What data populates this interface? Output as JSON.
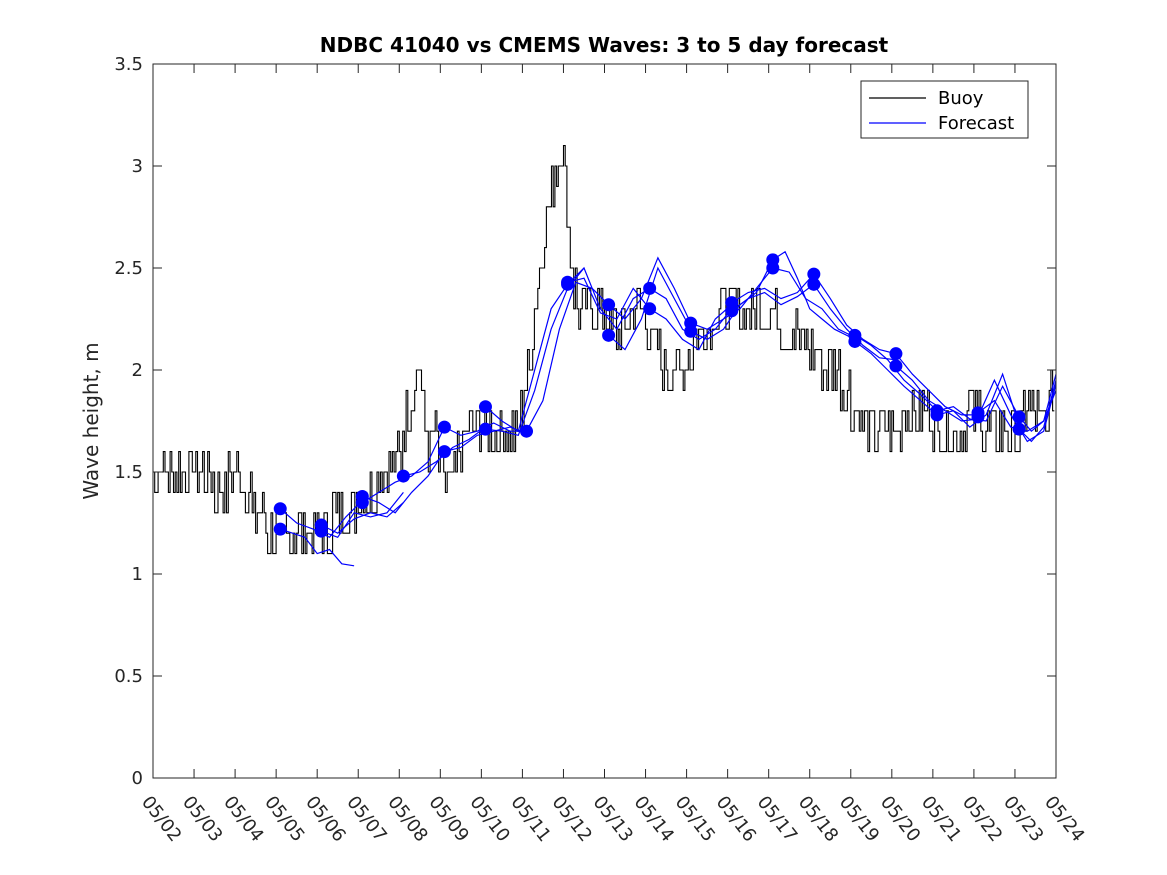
{
  "chart_data": {
    "type": "line",
    "title": "NDBC 41040 vs CMEMS Waves: 3 to 5 day forecast",
    "xlabel": "",
    "ylabel": "Wave height, m",
    "xlim": [
      "05/02",
      "05/24"
    ],
    "ylim": [
      0,
      3.5
    ],
    "x_ticks": [
      "05/02",
      "05/03",
      "05/04",
      "05/05",
      "05/06",
      "05/07",
      "05/08",
      "05/09",
      "05/10",
      "05/11",
      "05/12",
      "05/13",
      "05/14",
      "05/15",
      "05/16",
      "05/17",
      "05/18",
      "05/19",
      "05/20",
      "05/21",
      "05/22",
      "05/23",
      "05/24"
    ],
    "y_ticks": [
      "0",
      "0.5",
      "1",
      "1.5",
      "2",
      "2.5",
      "3",
      "3.5"
    ],
    "grid": false,
    "legend": {
      "position": "top-right",
      "entries": [
        "Buoy",
        "Forecast"
      ]
    },
    "colors": {
      "Buoy": "#000000",
      "Forecast": "#0000ff"
    },
    "series": [
      {
        "name": "Buoy",
        "style": "line",
        "day_offset_from_05_02": [
          0,
          0.25,
          0.5,
          0.75,
          1,
          1.25,
          1.5,
          1.75,
          2,
          2.25,
          2.5,
          2.75,
          3,
          3.25,
          3.5,
          3.75,
          4,
          4.25,
          4.5,
          4.75,
          5,
          5.25,
          5.5,
          5.75,
          6,
          6.25,
          6.5,
          6.75,
          6.9,
          7,
          7.25,
          7.5,
          7.75,
          8,
          8.25,
          8.5,
          8.75,
          9,
          9.25,
          9.5,
          9.75,
          10,
          10.25,
          10.4,
          10.5,
          10.75,
          11,
          11.25,
          11.5,
          11.75,
          12,
          12.25,
          12.5,
          12.75,
          13,
          13.25,
          13.5,
          13.75,
          14,
          14.25,
          14.5,
          14.75,
          15,
          15.25,
          15.5,
          15.75,
          16,
          16.25,
          16.5,
          16.75,
          17,
          17.25,
          17.5,
          17.75,
          18,
          18.25,
          18.5,
          18.75,
          19,
          19.25,
          19.5,
          19.75,
          20,
          20.25,
          20.5,
          20.75,
          21,
          21.25,
          21.5,
          21.75,
          22
        ],
        "wave_height_m": [
          1.5,
          1.55,
          1.5,
          1.5,
          1.55,
          1.5,
          1.45,
          1.4,
          1.5,
          1.45,
          1.3,
          1.25,
          1.2,
          1.15,
          1.2,
          1.25,
          1.2,
          1.2,
          1.3,
          1.3,
          1.35,
          1.4,
          1.45,
          1.5,
          1.55,
          1.8,
          2.05,
          1.6,
          1.7,
          1.55,
          1.4,
          1.6,
          1.7,
          1.7,
          1.75,
          1.7,
          1.7,
          1.75,
          2.1,
          2.6,
          2.9,
          3.1,
          2.5,
          2.3,
          2.3,
          2.25,
          2.3,
          2.2,
          2.2,
          2.3,
          2.25,
          2.1,
          2.0,
          1.95,
          2.05,
          2.2,
          2.15,
          2.3,
          2.35,
          2.3,
          2.35,
          2.3,
          2.3,
          2.25,
          2.2,
          2.15,
          2.1,
          2.05,
          2.0,
          1.95,
          1.85,
          1.75,
          1.7,
          1.65,
          1.7,
          1.75,
          1.8,
          1.75,
          1.75,
          1.7,
          1.75,
          1.7,
          1.8,
          1.75,
          1.7,
          1.75,
          1.7,
          1.75,
          1.8,
          1.7,
          1.95
        ]
      },
      {
        "name": "Forecast",
        "style": "line-with-markers",
        "runs": [
          {
            "start": 3.1,
            "x": [
              3.1,
              3.4,
              3.7,
              4.0,
              4.3,
              4.6,
              4.9
            ],
            "y": [
              1.22,
              1.2,
              1.18,
              1.1,
              1.12,
              1.05,
              1.04
            ]
          },
          {
            "start": 3.1,
            "x": [
              3.1,
              3.5,
              3.9,
              4.3,
              4.7,
              5.1
            ],
            "y": [
              1.32,
              1.25,
              1.22,
              1.18,
              1.28,
              1.36
            ]
          },
          {
            "start": 4.1,
            "x": [
              4.1,
              4.5,
              4.9,
              5.3,
              5.7,
              6.1
            ],
            "y": [
              1.24,
              1.2,
              1.27,
              1.3,
              1.28,
              1.35
            ]
          },
          {
            "start": 4.1,
            "x": [
              4.1,
              4.5,
              4.9,
              5.3,
              5.7,
              6.1
            ],
            "y": [
              1.21,
              1.18,
              1.3,
              1.28,
              1.3,
              1.4
            ]
          },
          {
            "start": 5.1,
            "x": [
              5.1,
              5.5,
              5.9,
              6.3,
              6.7,
              7.1
            ],
            "y": [
              1.38,
              1.35,
              1.3,
              1.4,
              1.48,
              1.6
            ]
          },
          {
            "start": 5.1,
            "x": [
              5.1,
              5.5,
              5.9,
              6.3,
              6.7,
              7.1
            ],
            "y": [
              1.35,
              1.4,
              1.45,
              1.48,
              1.55,
              1.72
            ]
          },
          {
            "start": 6.1,
            "x": [
              6.1,
              6.5,
              6.9,
              7.3,
              7.7,
              8.1
            ],
            "y": [
              1.48,
              1.5,
              1.55,
              1.62,
              1.66,
              1.72
            ]
          },
          {
            "start": 7.1,
            "x": [
              7.1,
              7.5,
              7.9,
              8.3,
              8.7,
              9.1
            ],
            "y": [
              1.72,
              1.68,
              1.7,
              1.74,
              1.7,
              1.7
            ]
          },
          {
            "start": 7.1,
            "x": [
              7.1,
              7.5,
              7.9,
              8.3,
              8.7,
              9.1
            ],
            "y": [
              1.6,
              1.62,
              1.68,
              1.7,
              1.72,
              1.69
            ]
          },
          {
            "start": 8.1,
            "x": [
              8.1,
              8.5,
              8.9,
              9.3,
              9.7,
              10.1
            ],
            "y": [
              1.82,
              1.75,
              1.7,
              2.0,
              2.3,
              2.42
            ]
          },
          {
            "start": 8.1,
            "x": [
              8.1,
              8.5,
              8.9,
              9.3,
              9.7,
              10.1,
              10.5
            ],
            "y": [
              1.71,
              1.7,
              1.68,
              1.9,
              2.2,
              2.4,
              2.5
            ]
          },
          {
            "start": 9.1,
            "x": [
              9.1,
              9.5,
              9.9,
              10.3,
              10.7,
              11.1
            ],
            "y": [
              1.7,
              1.85,
              2.2,
              2.43,
              2.4,
              2.32
            ]
          },
          {
            "start": 10.1,
            "x": [
              10.1,
              10.5,
              10.9,
              11.3,
              11.7,
              12.1
            ],
            "y": [
              2.42,
              2.5,
              2.3,
              2.2,
              2.35,
              2.4
            ]
          },
          {
            "start": 10.1,
            "x": [
              10.1,
              10.5,
              10.9,
              11.3,
              11.7,
              12.1
            ],
            "y": [
              2.43,
              2.45,
              2.28,
              2.25,
              2.4,
              2.3
            ]
          },
          {
            "start": 11.1,
            "x": [
              11.1,
              11.5,
              11.9,
              12.3,
              12.7,
              13.1
            ],
            "y": [
              2.32,
              2.25,
              2.35,
              2.55,
              2.4,
              2.23
            ]
          },
          {
            "start": 11.1,
            "x": [
              11.1,
              11.5,
              11.9,
              12.3,
              12.7,
              13.1
            ],
            "y": [
              2.17,
              2.1,
              2.25,
              2.5,
              2.35,
              2.2
            ]
          },
          {
            "start": 12.1,
            "x": [
              12.1,
              12.5,
              12.9,
              13.3,
              13.7,
              14.1
            ],
            "y": [
              2.4,
              2.35,
              2.2,
              2.15,
              2.2,
              2.3
            ]
          },
          {
            "start": 12.1,
            "x": [
              12.1,
              12.5,
              12.9,
              13.3,
              13.7,
              14.1
            ],
            "y": [
              2.3,
              2.25,
              2.15,
              2.1,
              2.25,
              2.32
            ]
          },
          {
            "start": 13.1,
            "x": [
              13.1,
              13.5,
              13.9,
              14.3,
              14.7,
              15.1
            ],
            "y": [
              2.23,
              2.2,
              2.25,
              2.3,
              2.4,
              2.5
            ]
          },
          {
            "start": 13.1,
            "x": [
              13.1,
              13.5,
              13.9,
              14.3,
              14.7,
              15.1
            ],
            "y": [
              2.19,
              2.15,
              2.2,
              2.32,
              2.38,
              2.54
            ]
          },
          {
            "start": 14.1,
            "x": [
              14.1,
              14.5,
              14.9,
              15.3,
              15.7,
              16.1
            ],
            "y": [
              2.33,
              2.38,
              2.4,
              2.35,
              2.38,
              2.47
            ]
          },
          {
            "start": 14.1,
            "x": [
              14.1,
              14.5,
              14.9,
              15.3,
              15.7,
              16.1
            ],
            "y": [
              2.29,
              2.35,
              2.38,
              2.32,
              2.36,
              2.42
            ]
          },
          {
            "start": 15.1,
            "x": [
              15.1,
              15.4,
              15.7,
              16.0,
              16.3,
              16.6,
              17.1
            ],
            "y": [
              2.54,
              2.58,
              2.45,
              2.3,
              2.25,
              2.2,
              2.15
            ]
          },
          {
            "start": 15.1,
            "x": [
              15.1,
              15.5,
              15.9,
              16.3,
              16.7,
              17.1
            ],
            "y": [
              2.5,
              2.48,
              2.35,
              2.3,
              2.2,
              2.16
            ]
          },
          {
            "start": 16.1,
            "x": [
              16.1,
              16.5,
              16.9,
              17.3,
              17.7,
              18.1
            ],
            "y": [
              2.47,
              2.35,
              2.22,
              2.15,
              2.1,
              2.08
            ]
          },
          {
            "start": 16.1,
            "x": [
              16.1,
              16.5,
              16.9,
              17.3,
              17.7,
              18.1
            ],
            "y": [
              2.42,
              2.3,
              2.2,
              2.12,
              2.06,
              2.05
            ]
          },
          {
            "start": 17.1,
            "x": [
              17.1,
              17.5,
              17.9,
              18.3,
              18.7,
              19.1
            ],
            "y": [
              2.17,
              2.12,
              2.05,
              1.95,
              1.88,
              1.8
            ]
          },
          {
            "start": 17.1,
            "x": [
              17.1,
              17.5,
              17.9,
              18.3,
              18.7,
              19.1
            ],
            "y": [
              2.14,
              2.08,
              2.0,
              1.92,
              1.85,
              1.78
            ]
          },
          {
            "start": 18.1,
            "x": [
              18.1,
              18.5,
              18.9,
              19.3,
              19.7,
              20.1
            ],
            "y": [
              2.08,
              1.98,
              1.9,
              1.82,
              1.78,
              1.78
            ]
          },
          {
            "start": 18.1,
            "x": [
              18.1,
              18.5,
              18.9,
              19.3,
              19.7,
              20.1
            ],
            "y": [
              2.02,
              1.95,
              1.85,
              1.8,
              1.75,
              1.76
            ]
          },
          {
            "start": 19.1,
            "x": [
              19.1,
              19.5,
              19.9,
              20.3,
              20.7,
              21.1
            ],
            "y": [
              1.8,
              1.82,
              1.76,
              1.75,
              1.92,
              1.77
            ]
          },
          {
            "start": 19.1,
            "x": [
              19.1,
              19.5,
              19.9,
              20.3,
              20.7,
              21.1
            ],
            "y": [
              1.78,
              1.8,
              1.72,
              1.78,
              1.98,
              1.73
            ]
          },
          {
            "start": 20.1,
            "x": [
              20.1,
              20.5,
              20.9,
              21.3,
              21.7,
              22.0
            ],
            "y": [
              1.79,
              1.85,
              1.72,
              1.7,
              1.75,
              1.98
            ]
          },
          {
            "start": 20.1,
            "x": [
              20.1,
              20.5,
              20.9,
              21.3,
              21.7,
              22.0
            ],
            "y": [
              1.77,
              1.95,
              1.78,
              1.65,
              1.7,
              1.93
            ]
          },
          {
            "start": 21.1,
            "x": [
              21.1,
              21.4,
              21.7,
              22.0
            ],
            "y": [
              1.77,
              1.7,
              1.75,
              1.9
            ]
          },
          {
            "start": 21.1,
            "x": [
              21.1,
              21.4,
              21.7,
              22.0
            ],
            "y": [
              1.71,
              1.65,
              1.72,
              1.95
            ]
          }
        ]
      }
    ]
  }
}
